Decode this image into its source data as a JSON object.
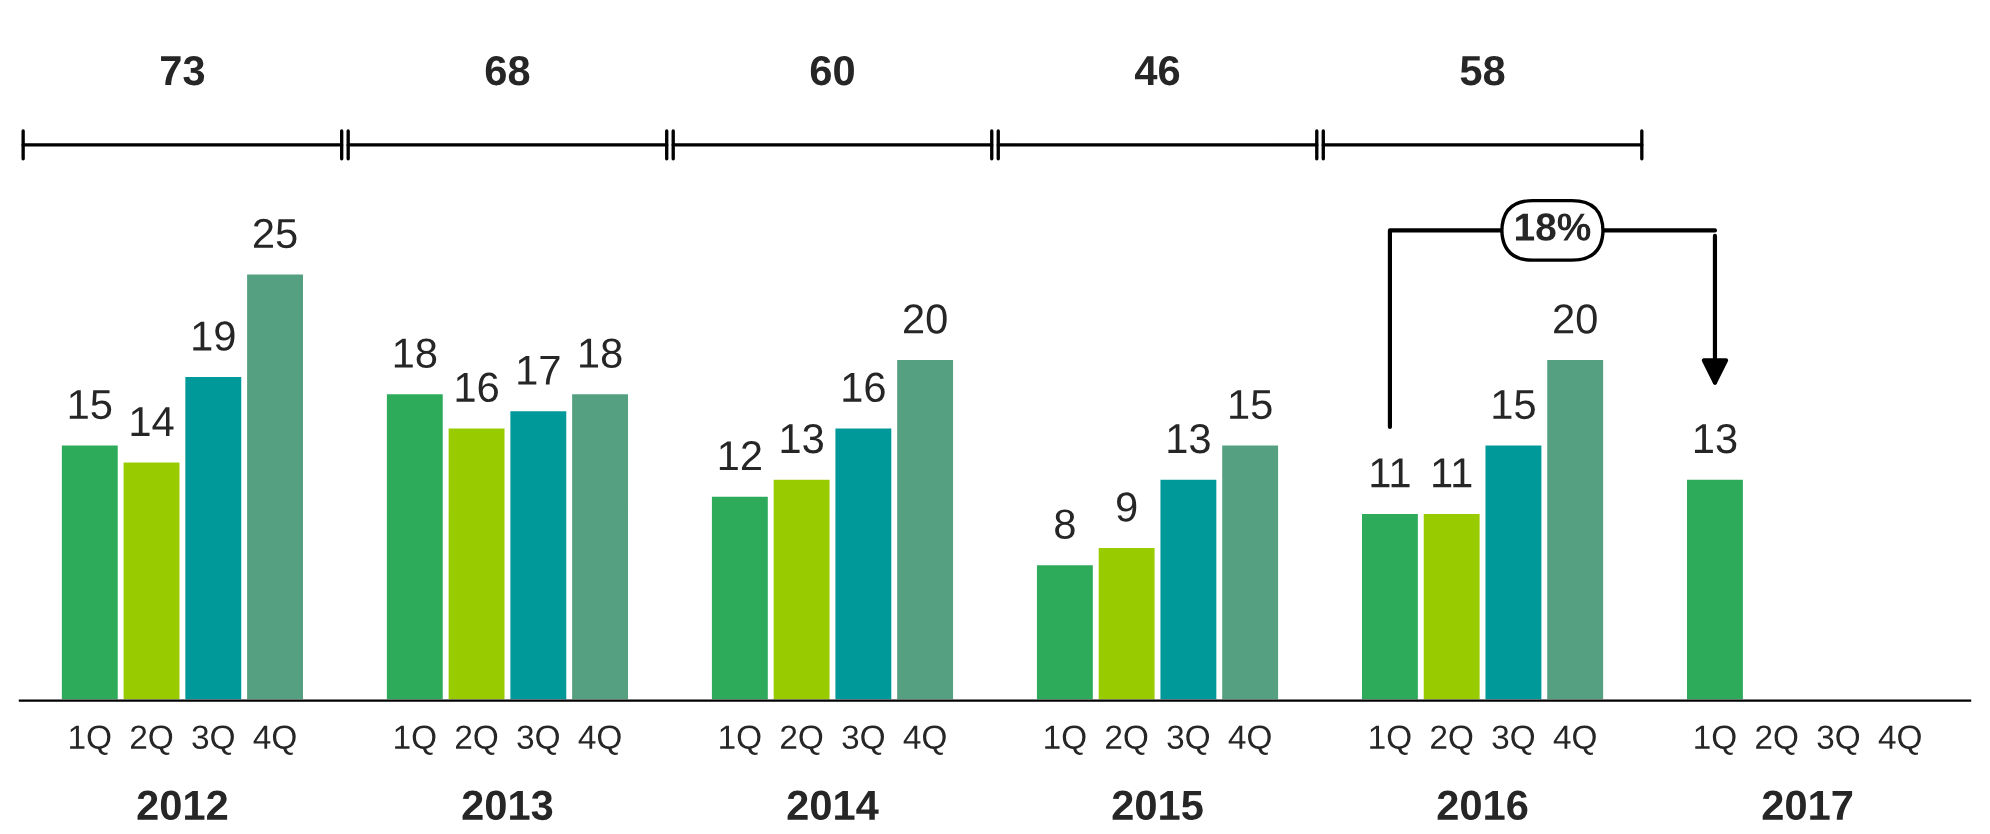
{
  "chart_data": {
    "type": "bar",
    "categories": [
      "2012",
      "2013",
      "2014",
      "2015",
      "2016",
      "2017"
    ],
    "series": [
      {
        "name": "1Q",
        "color": "#2eab5a",
        "values": [
          15,
          18,
          12,
          8,
          11,
          13
        ]
      },
      {
        "name": "2Q",
        "color": "#99cc00",
        "values": [
          14,
          16,
          13,
          9,
          11,
          null
        ]
      },
      {
        "name": "3Q",
        "color": "#00999a",
        "values": [
          19,
          17,
          16,
          13,
          15,
          null
        ]
      },
      {
        "name": "4Q",
        "color": "#55a080",
        "values": [
          25,
          18,
          20,
          15,
          20,
          null
        ]
      }
    ],
    "data_labels": true,
    "annotations": [
      "18%",
      "73",
      "68",
      "60",
      "46",
      "58"
    ]
  }
}
